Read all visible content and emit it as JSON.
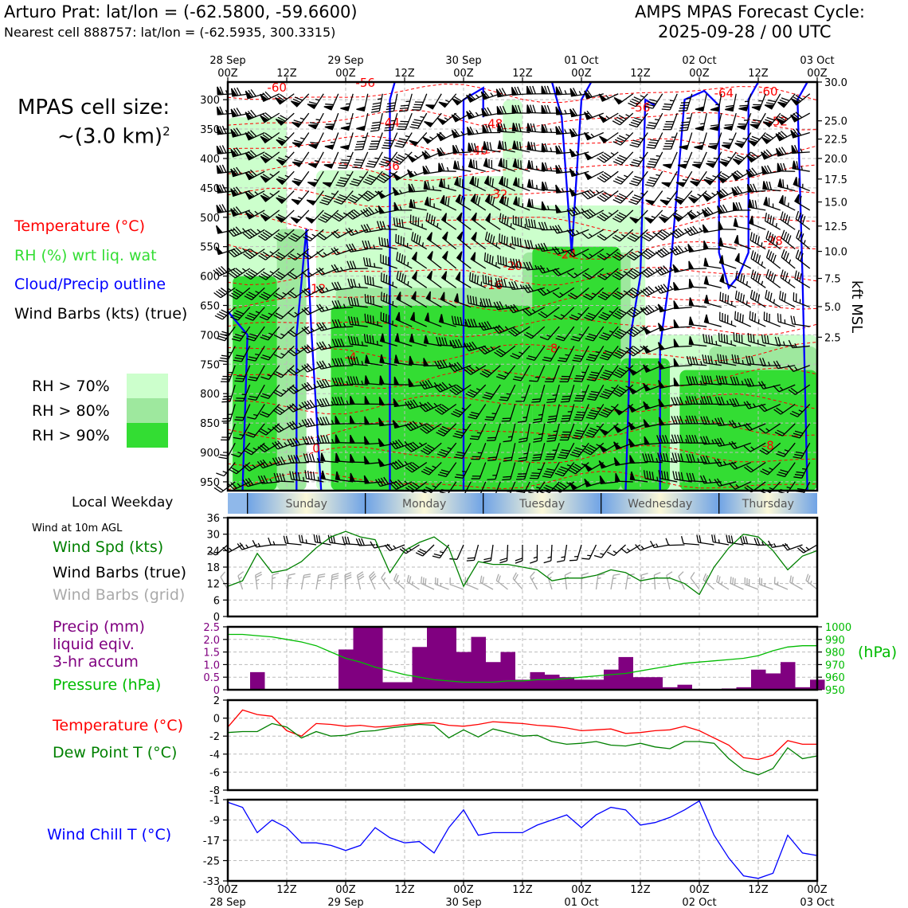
{
  "header": {
    "station_title": "Arturo Prat: lat/lon = (-62.5800, -59.6600)",
    "nearest_cell": "Nearest cell 888757: lat/lon = (-62.5935, 300.3315)",
    "forecast_title": "AMPS MPAS Forecast Cycle:",
    "forecast_cycle": "2025-09-28 / 00 UTC"
  },
  "legend": {
    "cell_size_label": "MPAS cell size:",
    "cell_size_value": "~(3.0 km)",
    "cell_size_exp": "2",
    "temperature": "Temperature (°C)",
    "rh": "RH (%) wrt liq. wat",
    "cloud": "Cloud/Precip outline",
    "barbs": "Wind Barbs (kts) (true)",
    "rh70": "RH > 70%",
    "rh80": "RH > 80%",
    "rh90": "RH > 90%",
    "local_weekday": "Local Weekday",
    "wind10m": "Wind at 10m AGL",
    "wind_spd": "Wind Spd (kts)",
    "wind_barbs_true": "Wind Barbs (true)",
    "wind_barbs_grid": "Wind Barbs (grid)",
    "precip1": "Precip (mm)",
    "precip2": "liquid eqiv.",
    "precip3": "3-hr accum",
    "pressure": "Pressure (hPa)",
    "temp2": "Temperature (°C)",
    "dewpoint": "Dew Point T (°C)",
    "windchill": "Wind Chill T (°C)",
    "kft_label": "kft MSL",
    "hpa_label": "(hPa)"
  },
  "colors": {
    "temperature": "#ff0000",
    "rh_text": "#33dd33",
    "cloud": "#0000ff",
    "rh70": "#ccffcc",
    "rh80": "#9ee89e",
    "rh90": "#33dd33",
    "wind_spd": "#008000",
    "grid_barbs": "#aaaaaa",
    "precip": "#800080",
    "pressure": "#00bb00",
    "dewpoint": "#008000",
    "windchill": "#0000ff"
  },
  "chart_data": [
    {
      "type": "heatmap",
      "title": "Vertical cross-section: temperature, RH, cloud outline, wind barbs",
      "x_top_ticks": [
        {
          "hour": 0,
          "date": "28 Sep",
          "time": "00Z"
        },
        {
          "hour": 12,
          "date": "",
          "time": "12Z"
        },
        {
          "hour": 24,
          "date": "29 Sep",
          "time": "00Z"
        },
        {
          "hour": 36,
          "date": "",
          "time": "12Z"
        },
        {
          "hour": 48,
          "date": "30 Sep",
          "time": "00Z"
        },
        {
          "hour": 60,
          "date": "",
          "time": "12Z"
        },
        {
          "hour": 72,
          "date": "01 Oct",
          "time": "00Z"
        },
        {
          "hour": 84,
          "date": "",
          "time": "12Z"
        },
        {
          "hour": 96,
          "date": "02 Oct",
          "time": "00Z"
        },
        {
          "hour": 108,
          "date": "",
          "time": "12Z"
        },
        {
          "hour": 120,
          "date": "03 Oct",
          "time": "00Z"
        }
      ],
      "pressure_axis": [
        "300",
        "350",
        "400",
        "450",
        "500",
        "550",
        "600",
        "650",
        "700",
        "750",
        "800",
        "850",
        "900",
        "950"
      ],
      "ylim_hpa": [
        270,
        965
      ],
      "kft_axis": [
        {
          "label": "30.0",
          "p": 270
        },
        {
          "label": "25.0",
          "p": 336
        },
        {
          "label": "22.5",
          "p": 367
        },
        {
          "label": "20.0",
          "p": 400
        },
        {
          "label": "17.5",
          "p": 435
        },
        {
          "label": "15.0",
          "p": 474
        },
        {
          "label": "12.5",
          "p": 515
        },
        {
          "label": "10.0",
          "p": 558
        },
        {
          "label": "7.5",
          "p": 604
        },
        {
          "label": "5.0",
          "p": 652
        },
        {
          "label": "2.5",
          "p": 704
        }
      ],
      "temperature_labels": [
        {
          "text": "-60",
          "hour": 10,
          "p": 286
        },
        {
          "text": "-56",
          "hour": 28,
          "p": 278
        },
        {
          "text": "-44",
          "hour": 33,
          "p": 346
        },
        {
          "text": "-48",
          "hour": 54,
          "p": 348
        },
        {
          "text": "-40",
          "hour": 51,
          "p": 393
        },
        {
          "text": "-36",
          "hour": 33,
          "p": 420
        },
        {
          "text": "-32",
          "hour": 55,
          "p": 468
        },
        {
          "text": "-24",
          "hour": 69,
          "p": 570
        },
        {
          "text": "-20",
          "hour": 58,
          "p": 590
        },
        {
          "text": "-16",
          "hour": 54,
          "p": 622
        },
        {
          "text": "-12",
          "hour": 18,
          "p": 628
        },
        {
          "text": "-8",
          "hour": 66,
          "p": 730
        },
        {
          "text": "-4",
          "hour": 25,
          "p": 745
        },
        {
          "text": "0",
          "hour": 18,
          "p": 900
        },
        {
          "text": "-56",
          "hour": 84,
          "p": 320
        },
        {
          "text": "-64",
          "hour": 101,
          "p": 296
        },
        {
          "text": "-60",
          "hour": 110,
          "p": 293
        },
        {
          "text": "-52",
          "hour": 112,
          "p": 344
        },
        {
          "text": "-28",
          "hour": 111,
          "p": 547
        },
        {
          "text": "-8",
          "hour": 110,
          "p": 895
        }
      ]
    },
    {
      "type": "line",
      "title": "Wind at 10m AGL",
      "ylabel": "Wind Spd (kts)",
      "ylim": [
        0,
        36
      ],
      "yticks": [
        "36",
        "30",
        "24",
        "18",
        "12",
        "6",
        "0"
      ],
      "x_hours": [
        0,
        3,
        6,
        9,
        12,
        15,
        18,
        21,
        24,
        27,
        30,
        33,
        36,
        39,
        42,
        45,
        48,
        51,
        54,
        57,
        60,
        63,
        66,
        69,
        72,
        75,
        78,
        81,
        84,
        87,
        90,
        93,
        96,
        99,
        102,
        105,
        108,
        111,
        114,
        117,
        120
      ],
      "values": [
        11,
        13,
        23,
        16,
        17,
        20,
        25,
        29,
        31,
        29,
        28,
        16,
        24,
        27,
        29,
        25,
        11,
        20,
        19,
        19,
        18,
        17,
        13,
        14,
        14,
        15,
        17,
        16,
        13,
        14,
        14,
        12,
        8,
        18,
        25,
        30,
        29,
        24,
        17,
        22,
        24
      ]
    },
    {
      "type": "bar",
      "title": "Precip (mm) liquid eqiv. 3-hr accum and Pressure (hPa)",
      "ylim": [
        0,
        2.5
      ],
      "yticks": [
        "2.5",
        "2.0",
        "1.5",
        "1.0",
        "0.5",
        "0"
      ],
      "x_hours": [
        0,
        3,
        6,
        9,
        12,
        15,
        18,
        21,
        24,
        27,
        30,
        33,
        36,
        39,
        42,
        45,
        48,
        51,
        54,
        57,
        60,
        63,
        66,
        69,
        72,
        75,
        78,
        81,
        84,
        87,
        90,
        93,
        96,
        99,
        102,
        105,
        108,
        111,
        114,
        117,
        120
      ],
      "precip": [
        0,
        0,
        0.7,
        0,
        0,
        0,
        0,
        0,
        1.6,
        2.5,
        2.5,
        0.3,
        0.3,
        1.7,
        2.5,
        2.5,
        1.5,
        2.1,
        1.1,
        1.5,
        0.4,
        0.7,
        0.6,
        0.5,
        0.4,
        0.4,
        0.8,
        1.3,
        0.5,
        0.5,
        0.1,
        0.2,
        0,
        0,
        0.05,
        0.1,
        0.8,
        0.65,
        1.1,
        0.1,
        0.4
      ],
      "pressure": [
        994,
        994,
        993,
        992,
        990,
        988,
        985,
        980,
        975,
        972,
        968,
        965,
        962,
        960,
        958,
        957,
        956,
        956,
        956,
        957,
        957,
        958,
        958,
        959,
        960,
        961,
        962,
        963,
        965,
        967,
        969,
        971,
        972,
        973,
        974,
        975,
        977,
        981,
        984,
        985,
        985
      ],
      "pressure_ylim": [
        950,
        1000
      ],
      "pressure_ticks": [
        "1000",
        "990",
        "980",
        "970",
        "960",
        "950"
      ]
    },
    {
      "type": "line",
      "title": "Temperature and Dew Point",
      "ylim": [
        -8,
        2
      ],
      "yticks": [
        "2",
        "0",
        "-2",
        "-4",
        "-6",
        "-8"
      ],
      "x_hours": [
        0,
        3,
        6,
        9,
        12,
        15,
        18,
        21,
        24,
        27,
        30,
        33,
        36,
        39,
        42,
        45,
        48,
        51,
        54,
        57,
        60,
        63,
        66,
        69,
        72,
        75,
        78,
        81,
        84,
        87,
        90,
        93,
        96,
        99,
        102,
        105,
        108,
        111,
        114,
        117,
        120
      ],
      "series": [
        {
          "name": "Temperature",
          "values": [
            -1,
            0.9,
            0.4,
            0.2,
            -1.4,
            -2,
            -0.6,
            -0.7,
            -0.9,
            -0.8,
            -1,
            -0.9,
            -0.7,
            -0.6,
            -0.5,
            -0.8,
            -0.9,
            -0.7,
            -0.4,
            -0.5,
            -0.6,
            -0.8,
            -0.9,
            -1.1,
            -1.4,
            -1.3,
            -1.2,
            -1.7,
            -1.6,
            -1.4,
            -1.3,
            -0.9,
            -1.4,
            -2.2,
            -3,
            -4.4,
            -4.6,
            -4.1,
            -2.5,
            -2.9,
            -2.9
          ]
        },
        {
          "name": "Dew Point",
          "values": [
            -1.6,
            -1.5,
            -1.5,
            -0.6,
            -1,
            -2.2,
            -1.5,
            -2,
            -1.9,
            -1.5,
            -1.4,
            -1.1,
            -0.9,
            -0.7,
            -0.8,
            -2.2,
            -1.3,
            -2.1,
            -1.2,
            -1.6,
            -2,
            -1.9,
            -2.6,
            -2.9,
            -2.8,
            -2.6,
            -3,
            -3.1,
            -2.8,
            -3.2,
            -3.4,
            -2.6,
            -2.6,
            -2.8,
            -4.5,
            -5.8,
            -6.3,
            -5.6,
            -3.3,
            -4.5,
            -4.2
          ]
        }
      ]
    },
    {
      "type": "line",
      "title": "Wind Chill T (°C)",
      "ylim": [
        -33,
        -1
      ],
      "yticks": [
        "-1",
        "-9",
        "-17",
        "-25",
        "-33"
      ],
      "x_hours": [
        0,
        3,
        6,
        9,
        12,
        15,
        18,
        21,
        24,
        27,
        30,
        33,
        36,
        39,
        42,
        45,
        48,
        51,
        54,
        57,
        60,
        63,
        66,
        69,
        72,
        75,
        78,
        81,
        84,
        87,
        90,
        93,
        96,
        99,
        102,
        105,
        108,
        111,
        114,
        117,
        120
      ],
      "values": [
        -2,
        -4,
        -14,
        -9,
        -12,
        -18,
        -18,
        -19,
        -21,
        -19,
        -12,
        -16,
        -18,
        -17.5,
        -22,
        -12,
        -5,
        -15,
        -14,
        -14,
        -14,
        -11,
        -9,
        -7,
        -12,
        -7,
        -4,
        -5,
        -11,
        -10,
        -8,
        -5,
        -1.5,
        -15,
        -24,
        -31,
        -32,
        -30,
        -15,
        -22,
        -23
      ]
    },
    {
      "type": "table",
      "title": "Local Weekday",
      "days": [
        "Sunday",
        "Monday",
        "Tuesday",
        "Wednesday",
        "Thursday"
      ]
    }
  ],
  "bottom_axis": [
    {
      "time": "00Z",
      "date": "28 Sep"
    },
    {
      "time": "12Z",
      "date": ""
    },
    {
      "time": "00Z",
      "date": "29 Sep"
    },
    {
      "time": "12Z",
      "date": ""
    },
    {
      "time": "00Z",
      "date": "30 Sep"
    },
    {
      "time": "12Z",
      "date": ""
    },
    {
      "time": "00Z",
      "date": "01 Oct"
    },
    {
      "time": "12Z",
      "date": ""
    },
    {
      "time": "00Z",
      "date": "02 Oct"
    },
    {
      "time": "12Z",
      "date": ""
    },
    {
      "time": "00Z",
      "date": "03 Oct"
    }
  ]
}
